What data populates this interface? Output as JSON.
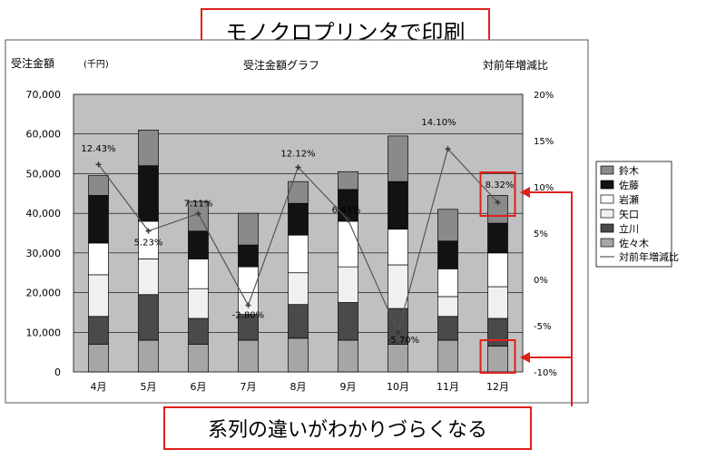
{
  "callouts": {
    "title": "モノクロプリンタで印刷",
    "bottom": "系列の違いがわかりづらくなる"
  },
  "colors": {
    "callout_border": "#e0201b",
    "plot_background": "#c0c0c0",
    "line": "#555555"
  },
  "chart_data": {
    "type": "bar",
    "stacked": true,
    "title": "受注金額グラフ",
    "ylabel": "受注金額",
    "yunit": "(千円)",
    "y2label": "対前年増減比",
    "categories": [
      "4月",
      "5月",
      "6月",
      "7月",
      "8月",
      "9月",
      "10月",
      "11月",
      "12月"
    ],
    "ylim": [
      0,
      70000
    ],
    "yticks": [
      "0",
      "10,000",
      "20,000",
      "30,000",
      "40,000",
      "50,000",
      "60,000",
      "70,000"
    ],
    "y2lim": [
      -10,
      20
    ],
    "y2ticks": [
      "-10%",
      "-5%",
      "0%",
      "5%",
      "10%",
      "15%",
      "20%"
    ],
    "series": [
      {
        "name": "佐々木",
        "color": "#a6a6a6",
        "values": [
          7000,
          8000,
          7000,
          8000,
          8500,
          8000,
          7000,
          8000,
          6500
        ]
      },
      {
        "name": "立川",
        "color": "#4a4a4a",
        "values": [
          7000,
          11500,
          6500,
          6500,
          8500,
          9500,
          9000,
          6000,
          7000
        ]
      },
      {
        "name": "矢口",
        "color": "#f0f0f0",
        "values": [
          10500,
          9000,
          7500,
          5500,
          8000,
          9000,
          11000,
          5000,
          8000
        ]
      },
      {
        "name": "岩瀬",
        "color": "#ffffff",
        "values": [
          8000,
          9500,
          7500,
          6500,
          9500,
          11500,
          9000,
          7000,
          8500
        ]
      },
      {
        "name": "佐藤",
        "color": "#121212",
        "values": [
          12000,
          14000,
          7000,
          5500,
          8000,
          8000,
          12000,
          7000,
          7500
        ]
      },
      {
        "name": "鈴木",
        "color": "#8a8a8a",
        "values": [
          5000,
          9000,
          7500,
          8000,
          5500,
          4500,
          11500,
          8000,
          7000
        ]
      }
    ],
    "line": {
      "name": "対前年増減比",
      "values": [
        12.43,
        5.23,
        7.11,
        -2.8,
        12.12,
        6.44,
        -5.7,
        14.1,
        8.32
      ],
      "labels": [
        "12.43%",
        "5.23%",
        "7.11%",
        "-2.80%",
        "12.12%",
        "6.44%",
        "-5.70%",
        "14.10%",
        "8.32%"
      ]
    },
    "legend_position": "right"
  }
}
